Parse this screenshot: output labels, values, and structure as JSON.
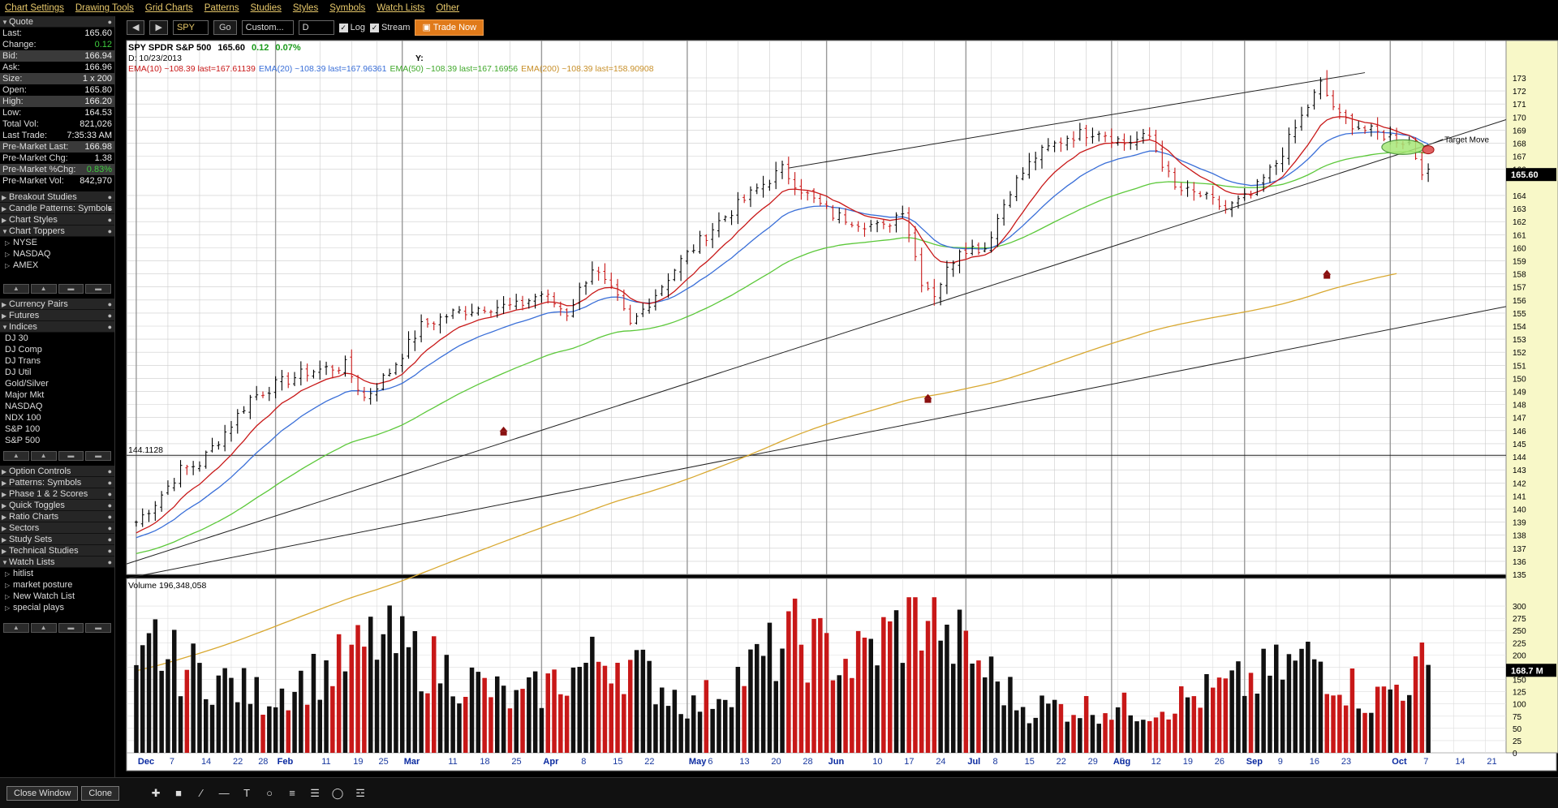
{
  "menu": [
    "Chart Settings",
    "Drawing Tools",
    "Grid Charts",
    "Patterns",
    "Studies",
    "Styles",
    "Symbols",
    "Watch Lists",
    "Other"
  ],
  "quote": {
    "title": "Quote",
    "rows": [
      {
        "label": "Last:",
        "value": "165.60",
        "style": ""
      },
      {
        "label": "Change:",
        "value": "0.12",
        "style": "pos"
      },
      {
        "label": "Bid:",
        "value": "166.94",
        "style": "",
        "hl": true
      },
      {
        "label": "Ask:",
        "value": "166.96",
        "style": ""
      },
      {
        "label": "Size:",
        "value": "1 x 200",
        "style": "",
        "hl": true
      },
      {
        "label": "Open:",
        "value": "165.80",
        "style": ""
      },
      {
        "label": "High:",
        "value": "166.20",
        "style": "",
        "hl": true
      },
      {
        "label": "Low:",
        "value": "164.53",
        "style": ""
      },
      {
        "label": "Total Vol:",
        "value": "821,026",
        "style": ""
      },
      {
        "label": "Last Trade:",
        "value": "7:35:33 AM",
        "style": ""
      },
      {
        "label": "Pre-Market Last:",
        "value": "166.98",
        "style": "",
        "hl": true
      },
      {
        "label": "Pre-Market Chg:",
        "value": "1.38",
        "style": ""
      },
      {
        "label": "Pre-Market %Chg:",
        "value": "0.83%",
        "style": "pos",
        "hl": true
      },
      {
        "label": "Pre-Market Vol:",
        "value": "842,970",
        "style": ""
      }
    ]
  },
  "sections": {
    "breakout": "Breakout Studies",
    "candle": "Candle Patterns: Symbols",
    "chart_styles": "Chart Styles",
    "chart_toppers": "Chart Toppers",
    "toppers_items": [
      "NYSE",
      "NASDAQ",
      "AMEX"
    ],
    "currency": "Currency Pairs",
    "futures": "Futures",
    "indices": "Indices",
    "indices_items": [
      "DJ 30",
      "DJ Comp",
      "DJ Trans",
      "DJ Util",
      "Gold/Silver",
      "Major Mkt",
      "NASDAQ",
      "NDX 100",
      "S&P 100",
      "S&P 500"
    ],
    "lower": [
      "Option Controls",
      "Patterns: Symbols",
      "Phase 1 & 2 Scores",
      "Quick Toggles",
      "Ratio Charts",
      "Sectors",
      "Study Sets",
      "Technical Studies"
    ],
    "watch": "Watch Lists",
    "watch_items": [
      "hitlist",
      "market posture",
      "New Watch List",
      "special plays"
    ]
  },
  "toolbar": {
    "symbol": "SPY",
    "go": "Go",
    "range": "Custom...",
    "period": "D",
    "log": "Log",
    "stream": "Stream",
    "trade": "Trade Now"
  },
  "bottom": {
    "close_window": "Close Window",
    "clone": "Clone"
  },
  "colors": {
    "up": "#c81818",
    "down": "#000000",
    "ema10": "#c81818",
    "ema20": "#3a6fd8",
    "ema50": "#5cc83a",
    "ema200": "#d8a830"
  },
  "chart_data": {
    "type": "ohlc",
    "title": "SPY SPDR S&P 500",
    "price": "165.60",
    "change": "0.12",
    "change_pct": "0.07%",
    "date_label": "D: 10/23/2013",
    "y_label": "Y:",
    "ema_legend": [
      {
        "text": "EMA(10) ~108.39 last=167.61139",
        "color": "#c81818"
      },
      {
        "text": "EMA(20) ~108.39 last=167.96361",
        "color": "#3a6fd8"
      },
      {
        "text": "EMA(50) ~108.39 last=167.16956",
        "color": "#3fa82a"
      },
      {
        "text": "EMA(200) ~108.39 last=158.90908",
        "color": "#c8902a"
      }
    ],
    "horizontal_line": {
      "value": 144.1128,
      "label": "144.1128"
    },
    "annotation": "Target Move",
    "last_price_tag": "165.60",
    "volume_label": "Volume 196,348,058",
    "volume_tag": "168.7 M",
    "ylim": [
      135,
      173
    ],
    "y_ticks": [
      173,
      172,
      171,
      170,
      169,
      168,
      167,
      166,
      164,
      163,
      162,
      161,
      160,
      159,
      158,
      157,
      156,
      155,
      154,
      153,
      152,
      151,
      150,
      149,
      148,
      147,
      146,
      145,
      144,
      143,
      142,
      141,
      140,
      139,
      138,
      137,
      136,
      135
    ],
    "volume_ticks": [
      300,
      275,
      250,
      225,
      200,
      175,
      150,
      125,
      100,
      75,
      50,
      25,
      0
    ],
    "volume_ylim": [
      0,
      320
    ],
    "x_ticks": [
      {
        "label": "Dec",
        "bold": true,
        "i": 0
      },
      {
        "label": "7",
        "i": 5
      },
      {
        "label": "14",
        "i": 10
      },
      {
        "label": "22",
        "i": 15
      },
      {
        "label": "28",
        "i": 19
      },
      {
        "label": "Feb",
        "bold": true,
        "i": 22
      },
      {
        "label": "11",
        "i": 29
      },
      {
        "label": "19",
        "i": 34
      },
      {
        "label": "25",
        "i": 38
      },
      {
        "label": "Mar",
        "bold": true,
        "i": 42
      },
      {
        "label": "11",
        "i": 49
      },
      {
        "label": "18",
        "i": 54
      },
      {
        "label": "25",
        "i": 59
      },
      {
        "label": "Apr",
        "bold": true,
        "i": 64
      },
      {
        "label": "8",
        "i": 70
      },
      {
        "label": "15",
        "i": 75
      },
      {
        "label": "22",
        "i": 80
      },
      {
        "label": "May",
        "bold": true,
        "i": 87
      },
      {
        "label": "6",
        "i": 90
      },
      {
        "label": "13",
        "i": 95
      },
      {
        "label": "20",
        "i": 100
      },
      {
        "label": "28",
        "i": 105
      },
      {
        "label": "Jun",
        "bold": true,
        "i": 109
      },
      {
        "label": "10",
        "i": 116
      },
      {
        "label": "17",
        "i": 121
      },
      {
        "label": "24",
        "i": 126
      },
      {
        "label": "Jul",
        "bold": true,
        "i": 131
      },
      {
        "label": "8",
        "i": 135
      },
      {
        "label": "15",
        "i": 140
      },
      {
        "label": "22",
        "i": 145
      },
      {
        "label": "29",
        "i": 150
      },
      {
        "label": "Aug",
        "bold": true,
        "i": 154
      },
      {
        "label": "5",
        "i": 155
      },
      {
        "label": "12",
        "i": 160
      },
      {
        "label": "19",
        "i": 165
      },
      {
        "label": "26",
        "i": 170
      },
      {
        "label": "Sep",
        "bold": true,
        "i": 175
      },
      {
        "label": "9",
        "i": 180
      },
      {
        "label": "16",
        "i": 185
      },
      {
        "label": "23",
        "i": 190
      },
      {
        "label": "Oct",
        "bold": true,
        "i": 198
      },
      {
        "label": "7",
        "i": 203
      },
      {
        "label": "14",
        "i": 208
      },
      {
        "label": "21",
        "i": 213
      }
    ],
    "n_bars": 205,
    "key_prices": [
      {
        "i": 0,
        "p": 139.0
      },
      {
        "i": 3,
        "p": 140.5
      },
      {
        "i": 7,
        "p": 143.0
      },
      {
        "i": 10,
        "p": 143.5
      },
      {
        "i": 15,
        "p": 146.5
      },
      {
        "i": 18,
        "p": 148.5
      },
      {
        "i": 22,
        "p": 149.5
      },
      {
        "i": 27,
        "p": 150.5
      },
      {
        "i": 33,
        "p": 151.0
      },
      {
        "i": 36,
        "p": 148.5
      },
      {
        "i": 40,
        "p": 150.5
      },
      {
        "i": 45,
        "p": 154.0
      },
      {
        "i": 50,
        "p": 155.0
      },
      {
        "i": 55,
        "p": 155.5
      },
      {
        "i": 60,
        "p": 155.5
      },
      {
        "i": 64,
        "p": 156.5
      },
      {
        "i": 68,
        "p": 155.0
      },
      {
        "i": 72,
        "p": 158.5
      },
      {
        "i": 76,
        "p": 156.0
      },
      {
        "i": 78,
        "p": 154.0
      },
      {
        "i": 82,
        "p": 156.5
      },
      {
        "i": 86,
        "p": 159.0
      },
      {
        "i": 92,
        "p": 162.0
      },
      {
        "i": 98,
        "p": 164.5
      },
      {
        "i": 102,
        "p": 166.0
      },
      {
        "i": 106,
        "p": 164.0
      },
      {
        "i": 110,
        "p": 162.5
      },
      {
        "i": 114,
        "p": 162.0
      },
      {
        "i": 118,
        "p": 161.5
      },
      {
        "i": 121,
        "p": 163.0
      },
      {
        "i": 124,
        "p": 157.5
      },
      {
        "i": 126,
        "p": 156.5
      },
      {
        "i": 130,
        "p": 160.0
      },
      {
        "i": 134,
        "p": 160.0
      },
      {
        "i": 138,
        "p": 164.5
      },
      {
        "i": 142,
        "p": 167.0
      },
      {
        "i": 147,
        "p": 168.5
      },
      {
        "i": 152,
        "p": 169.0
      },
      {
        "i": 156,
        "p": 168.0
      },
      {
        "i": 160,
        "p": 168.5
      },
      {
        "i": 164,
        "p": 164.5
      },
      {
        "i": 168,
        "p": 164.0
      },
      {
        "i": 172,
        "p": 163.0
      },
      {
        "i": 176,
        "p": 164.0
      },
      {
        "i": 180,
        "p": 166.5
      },
      {
        "i": 184,
        "p": 170.0
      },
      {
        "i": 187,
        "p": 172.5
      },
      {
        "i": 190,
        "p": 170.0
      },
      {
        "i": 194,
        "p": 169.0
      },
      {
        "i": 198,
        "p": 168.5
      },
      {
        "i": 201,
        "p": 168.0
      },
      {
        "i": 203,
        "p": 166.0
      },
      {
        "i": 204,
        "p": 165.6
      }
    ],
    "volume_key": [
      {
        "i": 0,
        "v": 150
      },
      {
        "i": 3,
        "v": 240
      },
      {
        "i": 5,
        "v": 200
      },
      {
        "i": 20,
        "v": 120
      },
      {
        "i": 34,
        "v": 200
      },
      {
        "i": 38,
        "v": 245
      },
      {
        "i": 60,
        "v": 110
      },
      {
        "i": 75,
        "v": 215
      },
      {
        "i": 88,
        "v": 100
      },
      {
        "i": 104,
        "v": 245
      },
      {
        "i": 113,
        "v": 195
      },
      {
        "i": 126,
        "v": 320
      },
      {
        "i": 128,
        "v": 260
      },
      {
        "i": 140,
        "v": 100
      },
      {
        "i": 160,
        "v": 95
      },
      {
        "i": 175,
        "v": 150
      },
      {
        "i": 186,
        "v": 205
      },
      {
        "i": 195,
        "v": 110
      },
      {
        "i": 203,
        "v": 180
      },
      {
        "i": 204,
        "v": 168.7
      }
    ]
  }
}
